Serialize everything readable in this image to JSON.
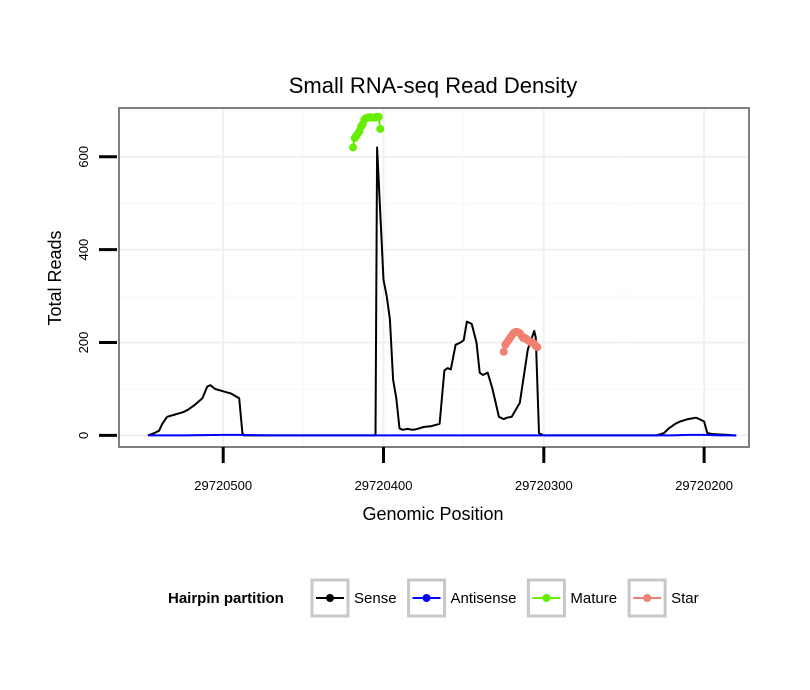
{
  "chart_data": {
    "type": "line",
    "title": "Small RNA-seq Read Density",
    "xlabel": "Genomic Position",
    "ylabel": "Total Reads",
    "xlim": [
      29720565,
      29720172
    ],
    "ylim": [
      -25,
      705
    ],
    "x_reversed": true,
    "grid": true,
    "x_ticks": [
      29720500,
      29720400,
      29720300,
      29720200
    ],
    "x_tick_labels": [
      "29720500",
      "29720400",
      "29720300",
      "29720200"
    ],
    "y_ticks": [
      0,
      200,
      400,
      600
    ],
    "y_tick_labels": [
      "0",
      "200",
      "400",
      "600"
    ],
    "legend": {
      "title": "Hairpin partition",
      "position": "bottom",
      "entries": [
        {
          "name": "Sense",
          "color": "#000000"
        },
        {
          "name": "Antisense",
          "color": "#0000ff"
        },
        {
          "name": "Mature",
          "color": "#66ee00"
        },
        {
          "name": "Star",
          "color": "#f08070"
        }
      ]
    },
    "series": [
      {
        "name": "Sense",
        "color": "#000000",
        "markers": false,
        "x": [
          29720547,
          29720543,
          29720540,
          29720538,
          29720535,
          29720530,
          29720525,
          29720522,
          29720518,
          29720513,
          29720510,
          29720508,
          29720505,
          29720500,
          29720495,
          29720490,
          29720488,
          29720487,
          29720480,
          29720470,
          29720460,
          29720450,
          29720440,
          29720430,
          29720420,
          29720410,
          29720405,
          29720404,
          29720400,
          29720398,
          29720396,
          29720394,
          29720392,
          29720390,
          29720388,
          29720385,
          29720382,
          29720380,
          29720375,
          29720370,
          29720365,
          29720362,
          29720360,
          29720358,
          29720355,
          29720352,
          29720350,
          29720348,
          29720345,
          29720342,
          29720340,
          29720338,
          29720335,
          29720332,
          29720328,
          29720325,
          29720323,
          29720320,
          29720315,
          29720310,
          29720306,
          29720305,
          29720303,
          29720300,
          29720290,
          29720280,
          29720270,
          29720260,
          29720250,
          29720235,
          29720230,
          29720225,
          29720222,
          29720218,
          29720215,
          29720210,
          29720205,
          29720203,
          29720200,
          29720198,
          29720195,
          29720190,
          29720185,
          29720182,
          29720180
        ],
        "y": [
          0,
          5,
          10,
          25,
          40,
          45,
          50,
          55,
          65,
          80,
          105,
          108,
          100,
          95,
          90,
          80,
          5,
          0,
          0,
          0,
          0,
          0,
          0,
          0,
          0,
          0,
          0,
          620,
          335,
          300,
          250,
          120,
          80,
          15,
          12,
          14,
          12,
          13,
          18,
          20,
          25,
          140,
          145,
          142,
          195,
          200,
          205,
          245,
          240,
          200,
          135,
          130,
          135,
          100,
          40,
          35,
          38,
          40,
          70,
          185,
          225,
          210,
          5,
          0,
          0,
          0,
          0,
          0,
          0,
          0,
          0,
          5,
          15,
          25,
          30,
          35,
          38,
          35,
          30,
          5,
          3,
          2,
          1,
          0,
          0
        ]
      },
      {
        "name": "Antisense",
        "color": "#0000ff",
        "markers": false,
        "x": [
          29720547,
          29720525,
          29720500,
          29720490,
          29720470,
          29720400,
          29720300,
          29720220,
          29720210,
          29720200,
          29720190,
          29720180
        ],
        "y": [
          0,
          0,
          1,
          1,
          0,
          0,
          0,
          0,
          1,
          1,
          0,
          0
        ]
      },
      {
        "name": "Mature",
        "color": "#66ee00",
        "markers": true,
        "x": [
          29720419,
          29720418,
          29720417,
          29720416,
          29720415,
          29720414,
          29720413,
          29720412,
          29720411,
          29720410,
          29720409,
          29720408,
          29720407,
          29720406,
          29720405,
          29720404,
          29720403,
          29720402
        ],
        "y": [
          620,
          640,
          645,
          650,
          655,
          665,
          670,
          680,
          683,
          684,
          685,
          685,
          684,
          684,
          685,
          686,
          686,
          660
        ]
      },
      {
        "name": "Star",
        "color": "#f08070",
        "markers": true,
        "x": [
          29720325,
          29720324,
          29720323,
          29720322,
          29720321,
          29720320,
          29720319,
          29720318,
          29720317,
          29720316,
          29720315,
          29720314,
          29720313,
          29720312,
          29720311,
          29720310,
          29720309,
          29720308,
          29720307,
          29720306,
          29720305,
          29720304
        ],
        "y": [
          180,
          195,
          200,
          205,
          210,
          215,
          220,
          222,
          223,
          222,
          220,
          215,
          210,
          210,
          208,
          205,
          203,
          200,
          200,
          198,
          192,
          190
        ]
      }
    ]
  }
}
